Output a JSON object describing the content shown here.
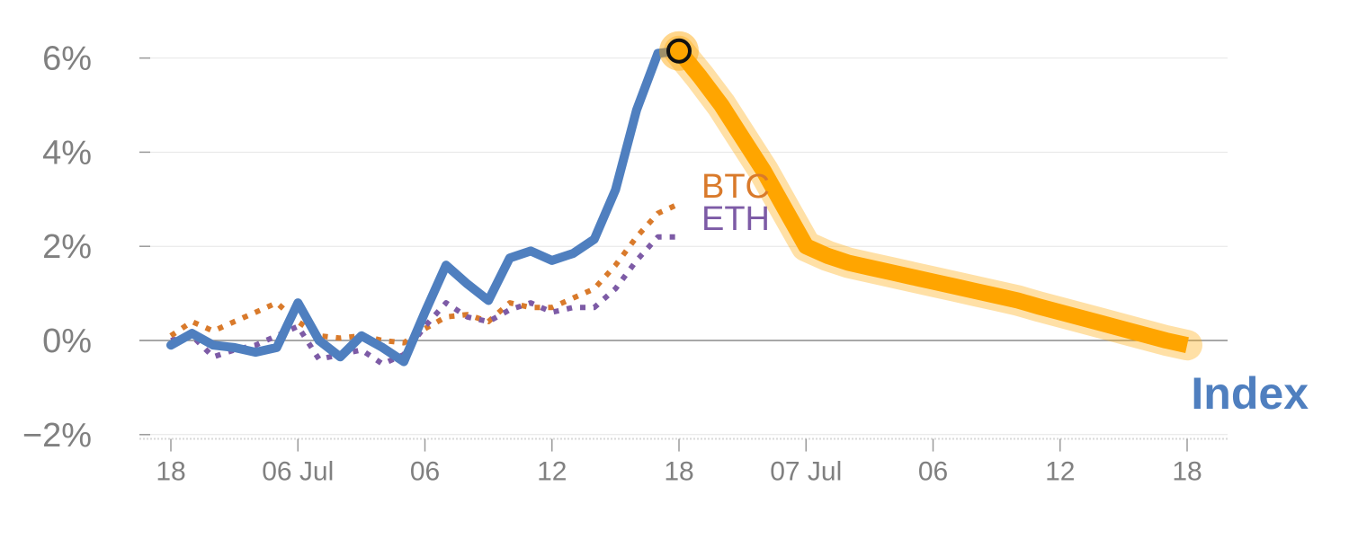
{
  "chart_data": {
    "type": "line",
    "title": "",
    "xlabel": "",
    "ylabel": "",
    "x_tick_labels": [
      "18",
      "06 Jul",
      "06",
      "12",
      "18",
      "07 Jul",
      "06",
      "12",
      "18"
    ],
    "y_ticks": [
      -2,
      0,
      2,
      4,
      6
    ],
    "y_tick_labels": [
      "−2%",
      "0%",
      "2%",
      "4%",
      "6%"
    ],
    "ylim": [
      -2.1,
      6.5
    ],
    "x_range": [
      0,
      48
    ],
    "grid": true,
    "series": [
      {
        "name": "Index",
        "color": "#4f7fbf",
        "style": "solid",
        "x": [
          0,
          1,
          2,
          3,
          4,
          5,
          6,
          7,
          8,
          9,
          10,
          11,
          12,
          13,
          14,
          15,
          16,
          17,
          18,
          19,
          20,
          21,
          22,
          23,
          24
        ],
        "values": [
          -0.1,
          0.15,
          -0.1,
          -0.15,
          -0.25,
          -0.15,
          0.8,
          0.0,
          -0.35,
          0.1,
          -0.15,
          -0.45,
          0.6,
          1.6,
          1.2,
          0.85,
          1.75,
          1.9,
          1.7,
          1.85,
          2.15,
          3.2,
          4.9,
          6.1,
          6.15
        ]
      },
      {
        "name": "BTC",
        "color": "#d97a2b",
        "style": "dotted",
        "x": [
          0,
          1,
          2,
          3,
          4,
          5,
          6,
          7,
          8,
          9,
          10,
          11,
          12,
          13,
          14,
          15,
          16,
          17,
          18,
          19,
          20,
          21,
          22,
          23,
          24
        ],
        "values": [
          0.1,
          0.4,
          0.2,
          0.4,
          0.6,
          0.8,
          0.4,
          0.1,
          0.05,
          0.1,
          0.0,
          -0.05,
          0.25,
          0.5,
          0.55,
          0.4,
          0.8,
          0.7,
          0.7,
          0.9,
          1.1,
          1.6,
          2.2,
          2.7,
          2.9
        ]
      },
      {
        "name": "ETH",
        "color": "#7d5ba6",
        "style": "dotted",
        "x": [
          0,
          1,
          2,
          3,
          4,
          5,
          6,
          7,
          8,
          9,
          10,
          11,
          12,
          13,
          14,
          15,
          16,
          17,
          18,
          19,
          20,
          21,
          22,
          23,
          24
        ],
        "values": [
          0.0,
          0.1,
          -0.35,
          -0.2,
          -0.1,
          0.1,
          0.3,
          -0.4,
          -0.3,
          -0.2,
          -0.5,
          -0.3,
          0.3,
          0.8,
          0.5,
          0.4,
          0.65,
          0.8,
          0.6,
          0.7,
          0.7,
          1.1,
          1.7,
          2.2,
          2.2
        ]
      }
    ],
    "highlight": {
      "color": "#ffa500",
      "x": [
        24,
        25,
        26,
        27,
        28,
        29,
        30,
        31,
        32,
        33,
        34,
        35,
        36,
        37,
        38,
        39,
        40,
        41,
        42,
        43,
        44,
        45,
        46,
        47,
        48
      ],
      "values": [
        6.15,
        5.6,
        5.0,
        4.3,
        3.6,
        2.8,
        2.0,
        1.8,
        1.65,
        1.55,
        1.45,
        1.35,
        1.25,
        1.15,
        1.05,
        0.95,
        0.85,
        0.72,
        0.6,
        0.48,
        0.36,
        0.24,
        0.12,
        0.0,
        -0.1
      ],
      "marker_x": 24,
      "marker_value": 6.15
    }
  }
}
